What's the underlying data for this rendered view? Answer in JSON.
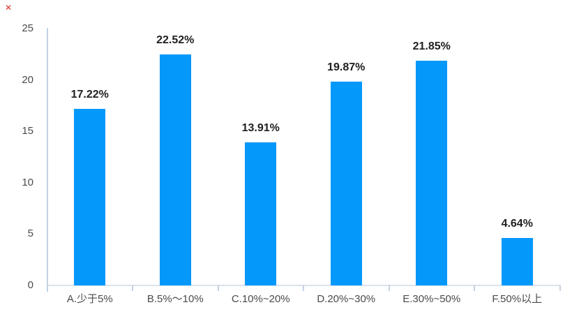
{
  "broken_image_icon": {
    "glyph": "✕",
    "color": "#e0312f"
  },
  "chart_data": {
    "type": "bar",
    "title": "",
    "xlabel": "",
    "ylabel": "",
    "categories": [
      "A.少于5%",
      "B.5%～10%",
      "C.10%~20%",
      "D.20%~30%",
      "E.30%~50%",
      "F.50%以上"
    ],
    "values": [
      17.22,
      22.52,
      13.91,
      19.87,
      21.85,
      4.64
    ],
    "value_labels": [
      "17.22%",
      "22.52%",
      "13.91%",
      "19.87%",
      "21.85%",
      "4.64%"
    ],
    "ylim": [
      0,
      25
    ],
    "yticks": [
      0,
      5,
      10,
      15,
      20,
      25
    ],
    "grid": false,
    "legend": null,
    "bar_color": "#0598fb",
    "axis_line_color": "#c3d2e1",
    "baseline_color": "#d9e2ec",
    "tick_label_color": "#4a4a4a",
    "value_label_color": "#1f1f1f"
  }
}
